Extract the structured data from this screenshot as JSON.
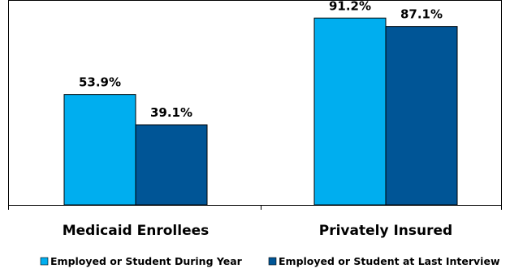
{
  "chart_data": {
    "type": "bar",
    "categories": [
      "Medicaid Enrollees",
      "Privately Insured"
    ],
    "series": [
      {
        "name": "Employed or Student During Year",
        "values": [
          53.9,
          91.2
        ],
        "labels": [
          "53.9%",
          "91.2%"
        ],
        "color": "#00AEEF"
      },
      {
        "name": "Employed or Student at Last Interview",
        "values": [
          39.1,
          87.1
        ],
        "labels": [
          "39.1%",
          "87.1%"
        ],
        "color": "#005596"
      }
    ],
    "title": "",
    "xlabel": "",
    "ylabel": "",
    "ylim": [
      0,
      100
    ],
    "grid": false,
    "legend_position": "bottom"
  }
}
